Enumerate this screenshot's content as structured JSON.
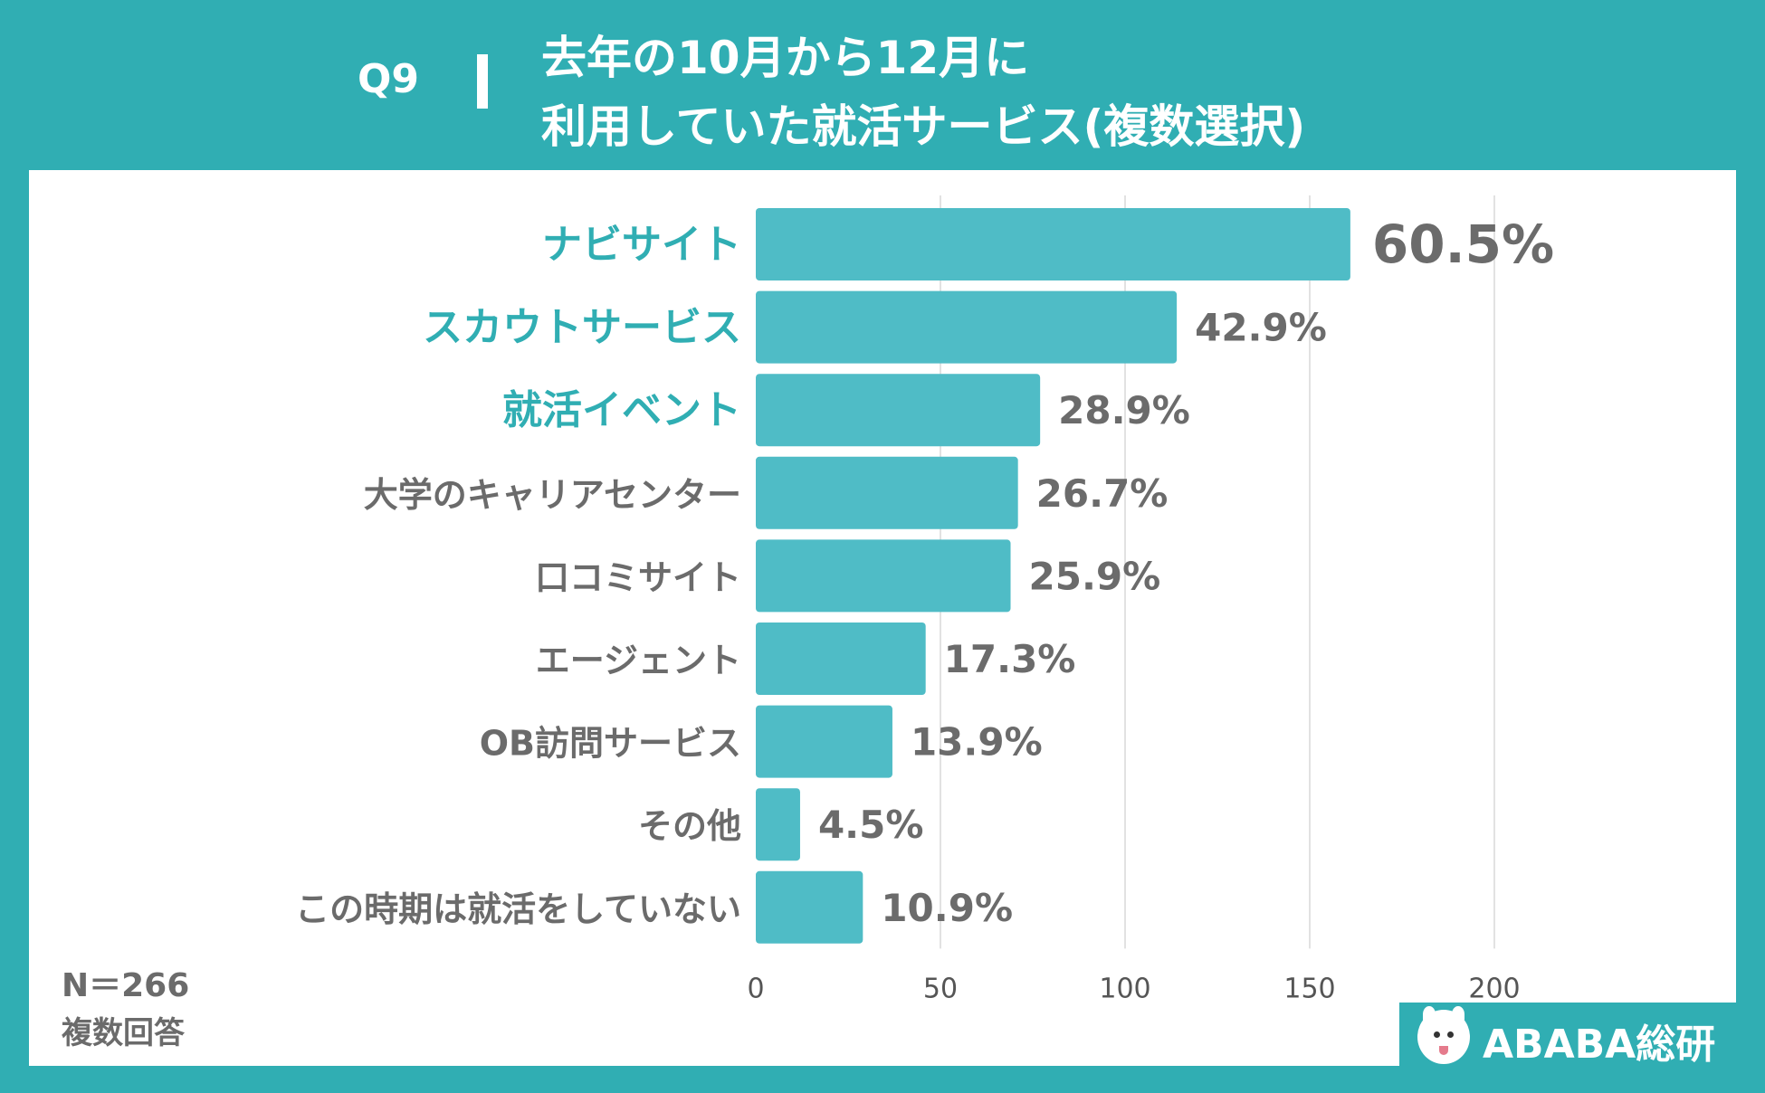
{
  "header": {
    "question": "Q9",
    "title_line1": "去年の10月から12月に",
    "title_line2": "利用していた就活サービス(複数選択)"
  },
  "footer": {
    "n_label": "N＝266",
    "multi_label": "複数回答",
    "logo_text": "ABABA総研",
    "logo_icon": "alpaca-icon"
  },
  "colors": {
    "background": "#30aeb3",
    "bar": "#4fbcc6",
    "highlight_label": "#30aeb3",
    "normal_label": "#6b6b6b",
    "value_label": "#6b6b6b",
    "gridline": "#d9d9d9"
  },
  "chart_data": {
    "type": "bar",
    "orientation": "horizontal",
    "categories": [
      "ナビサイト",
      "スカウトサービス",
      "就活イベント",
      "大学のキャリアセンター",
      "口コミサイト",
      "エージェント",
      "OB訪問サービス",
      "その他",
      "この時期は就活をしていない"
    ],
    "counts": [
      161,
      114,
      77,
      71,
      69,
      46,
      37,
      12,
      29
    ],
    "percent_labels": [
      "60.5%",
      "42.9%",
      "28.9%",
      "26.7%",
      "25.9%",
      "17.3%",
      "13.9%",
      "4.5%",
      "10.9%"
    ],
    "highlighted": [
      true,
      true,
      true,
      false,
      false,
      false,
      false,
      false,
      false
    ],
    "xlim": [
      0,
      200
    ],
    "xticks": [
      0,
      50,
      100,
      150,
      200
    ],
    "grid": true,
    "title": "去年の10月から12月に利用していた就活サービス(複数選択)"
  }
}
